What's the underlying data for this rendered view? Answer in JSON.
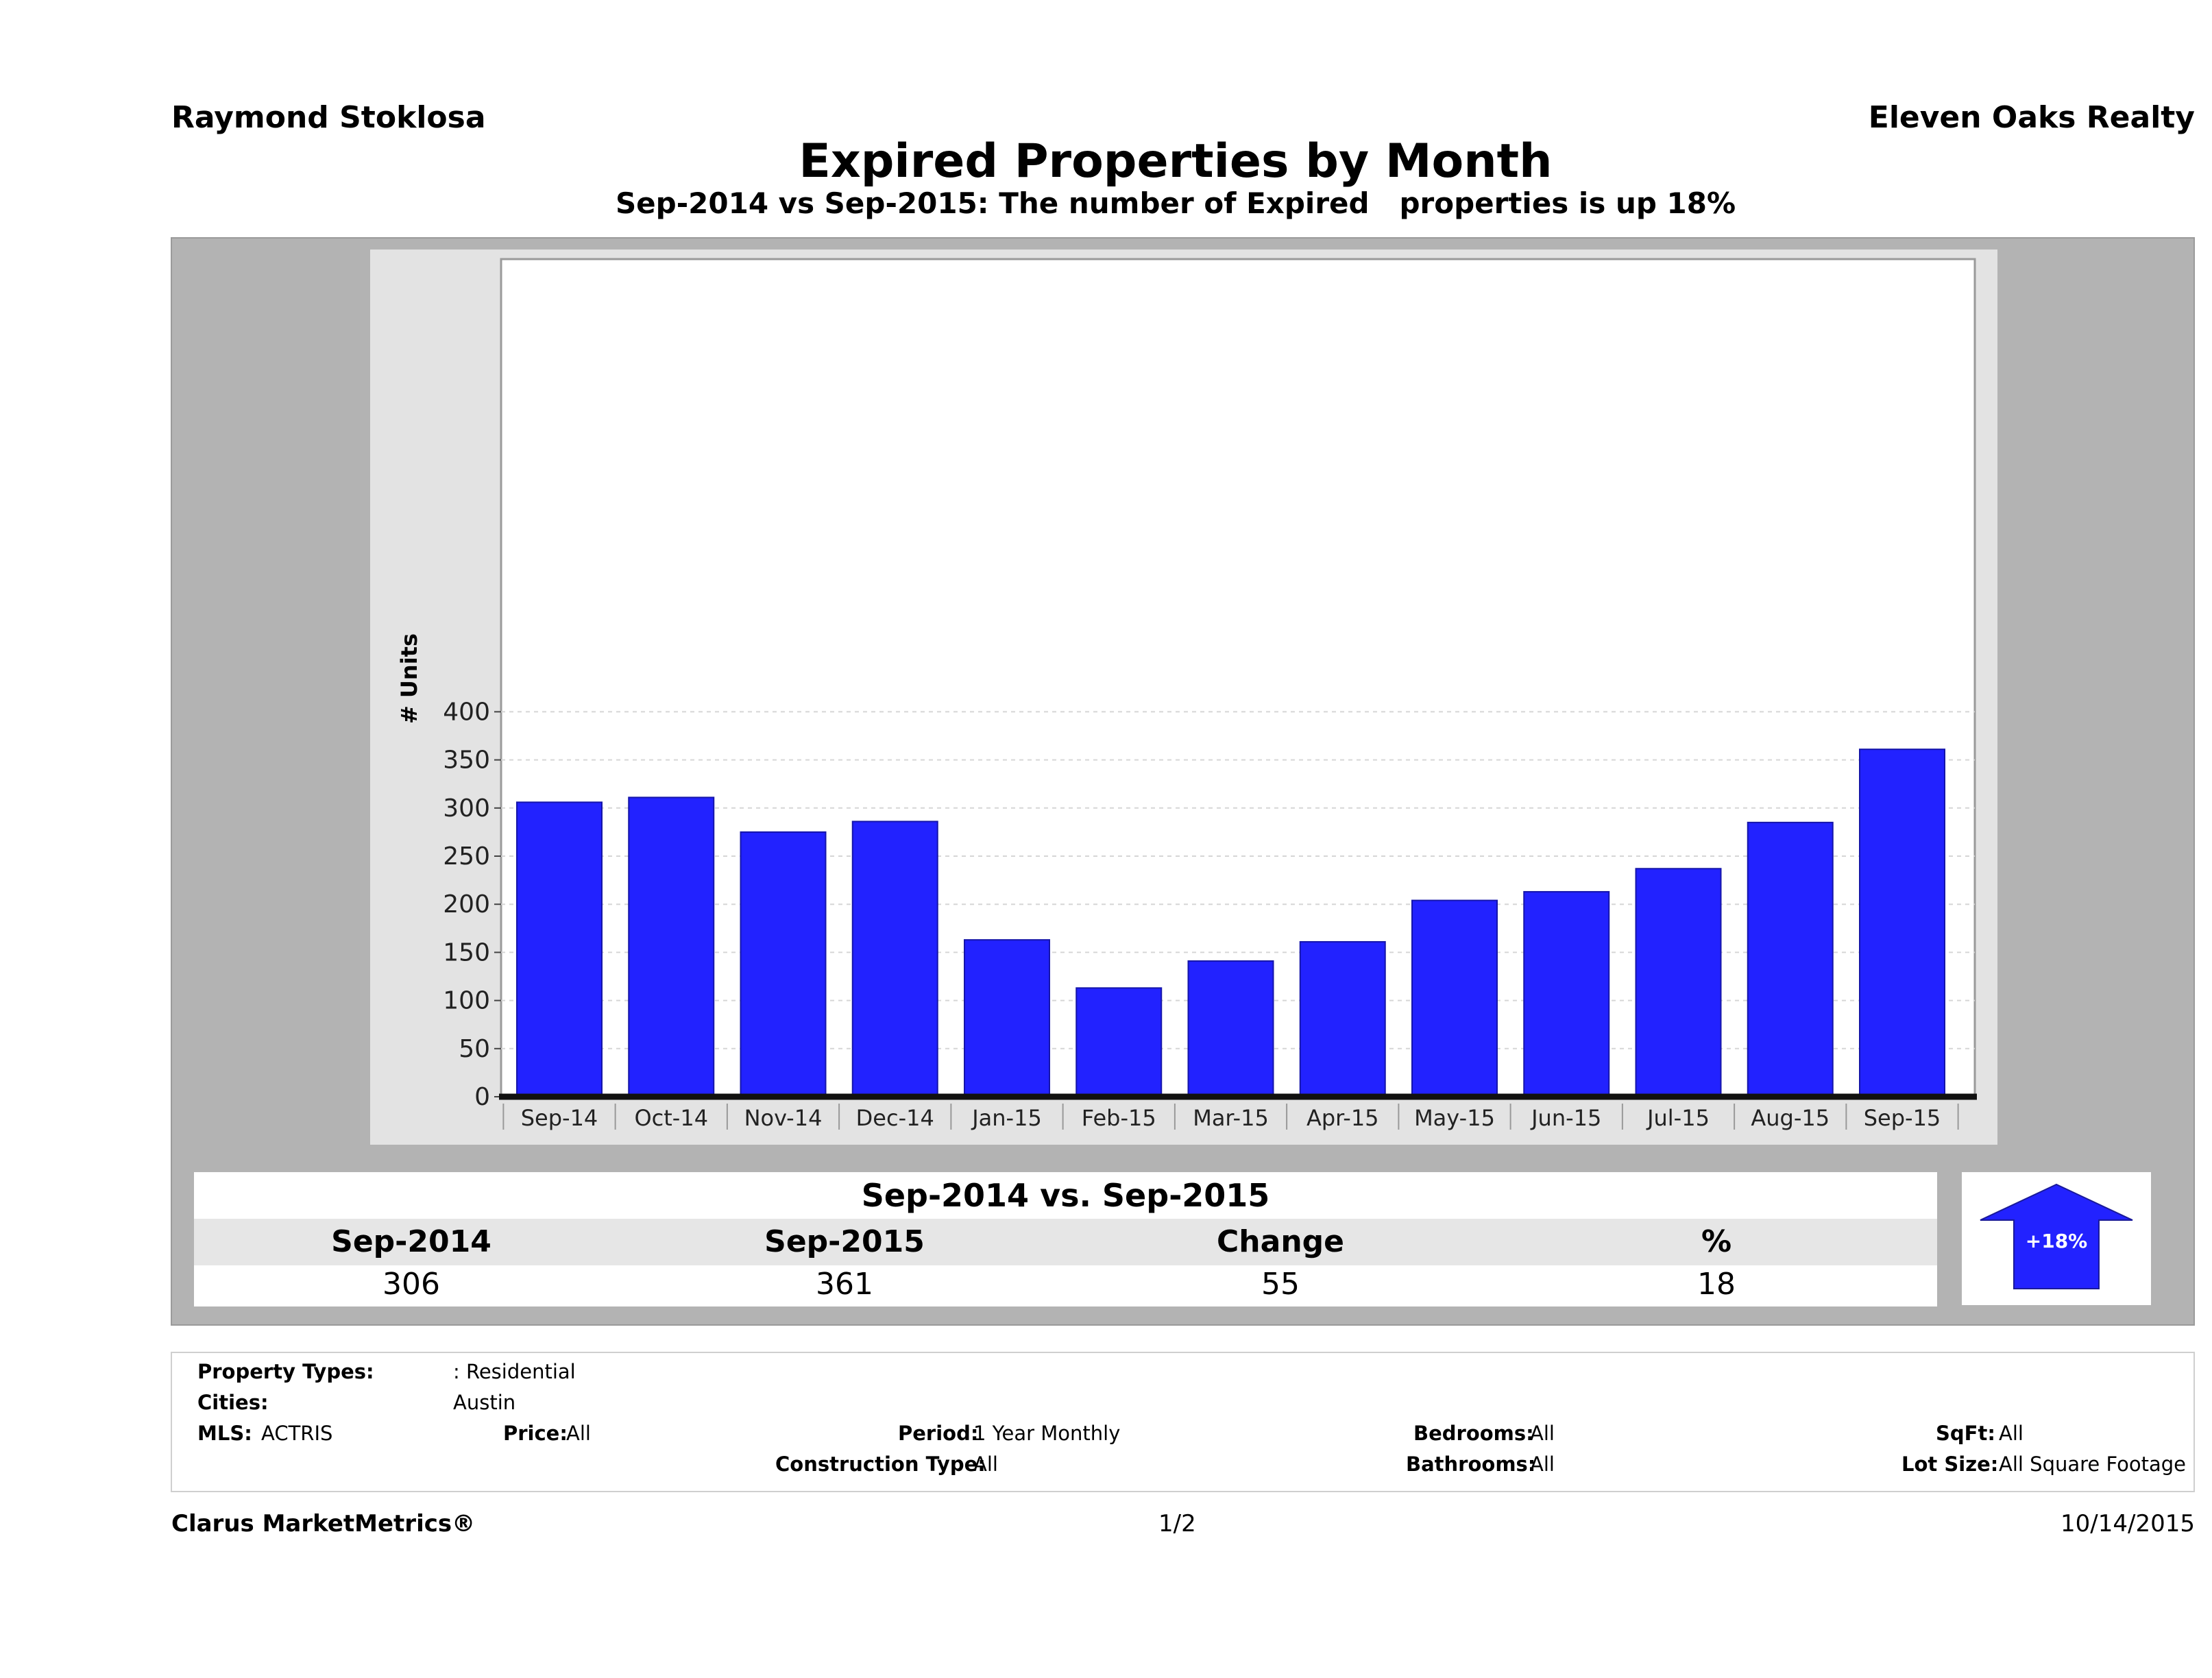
{
  "header": {
    "agent": "Raymond Stoklosa",
    "company": "Eleven Oaks Realty",
    "title": "Expired Properties by Month",
    "subtitle": "Sep-2014 vs Sep-2015: The number of Expired   properties is up 18%"
  },
  "chart_data": {
    "type": "bar",
    "title": "Expired Properties by Month",
    "subtitle": "Sep-2014 vs Sep-2015: The number of Expired   properties is up 18%",
    "ylabel": "# Units",
    "xlabel": "",
    "ylim": [
      0,
      430
    ],
    "yticks": [
      0,
      50,
      100,
      150,
      200,
      250,
      300,
      350,
      400
    ],
    "grid": true,
    "categories": [
      "Sep-14",
      "Oct-14",
      "Nov-14",
      "Dec-14",
      "Jan-15",
      "Feb-15",
      "Mar-15",
      "Apr-15",
      "May-15",
      "Jun-15",
      "Jul-15",
      "Aug-15",
      "Sep-15"
    ],
    "values": [
      306,
      311,
      275,
      286,
      163,
      113,
      141,
      161,
      204,
      213,
      237,
      285,
      361
    ],
    "bar_color": "#2222ff"
  },
  "comparison": {
    "title": "Sep-2014 vs. Sep-2015",
    "headers": [
      "Sep-2014",
      "Sep-2015",
      "Change",
      "%"
    ],
    "values": [
      "306",
      "361",
      "55",
      "18"
    ],
    "badge": "+18%",
    "badge_color": "#2222ff"
  },
  "filters": {
    "property_types_label": "Property Types:",
    "property_types_value": ": Residential",
    "cities_label": "Cities:",
    "cities_value": "Austin",
    "mls_label": "MLS:",
    "mls_value": "ACTRIS",
    "price_label": "Price:",
    "price_value": "All",
    "period_label": "Period:",
    "period_value": "1 Year Monthly",
    "construction_label": "Construction Type:",
    "construction_value": "All",
    "bedrooms_label": "Bedrooms:",
    "bedrooms_value": "All",
    "bathrooms_label": "Bathrooms:",
    "bathrooms_value": "All",
    "sqft_label": "SqFt:",
    "sqft_value": "All",
    "lot_label": "Lot Size:",
    "lot_value": "All Square Footage"
  },
  "footer": {
    "brand": "Clarus MarketMetrics®",
    "page": "1/2",
    "date": "10/14/2015"
  }
}
